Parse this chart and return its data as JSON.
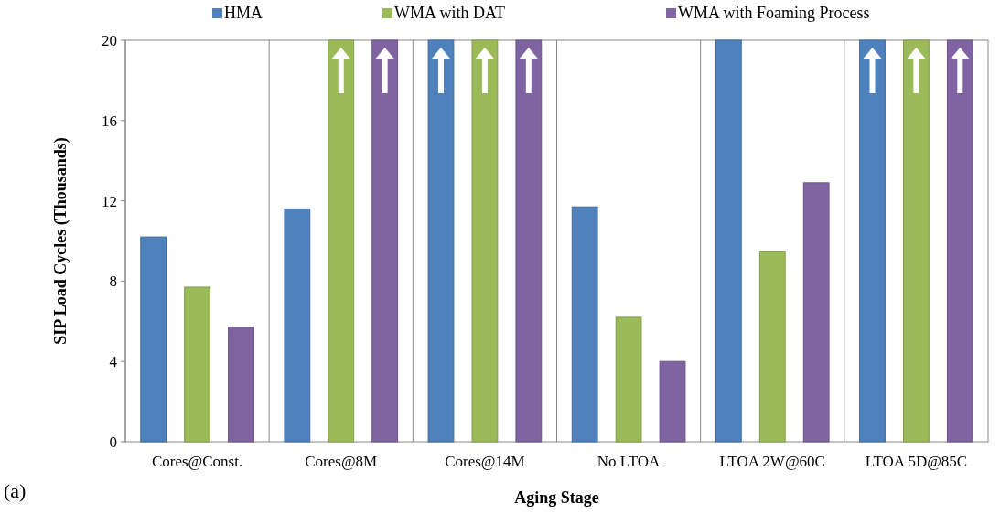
{
  "chart_data": {
    "type": "bar",
    "xlabel": "Aging Stage",
    "ylabel": "SIP Load Cycles (Thousands)",
    "categories": [
      "Cores@Const.",
      "Cores@8M",
      "Cores@14M",
      "No LTOA",
      "LTOA 2W@60C",
      "LTOA 5D@85C"
    ],
    "series": [
      {
        "name": "HMA",
        "color": "#4f81bd",
        "values": [
          10.2,
          11.6,
          20,
          11.7,
          20,
          20
        ]
      },
      {
        "name": "WMA with DAT",
        "color": "#9bbb59",
        "values": [
          7.7,
          20,
          20,
          6.2,
          9.5,
          20
        ]
      },
      {
        "name": "WMA with Foaming Process",
        "color": "#8064a2",
        "values": [
          5.7,
          20,
          20,
          4.0,
          12.9,
          20
        ]
      }
    ],
    "ylim": [
      0,
      20
    ],
    "yticks": [
      0,
      4,
      8,
      12,
      16,
      20
    ],
    "grid": "x",
    "legend": "top",
    "annotations": [
      "(a)"
    ]
  }
}
